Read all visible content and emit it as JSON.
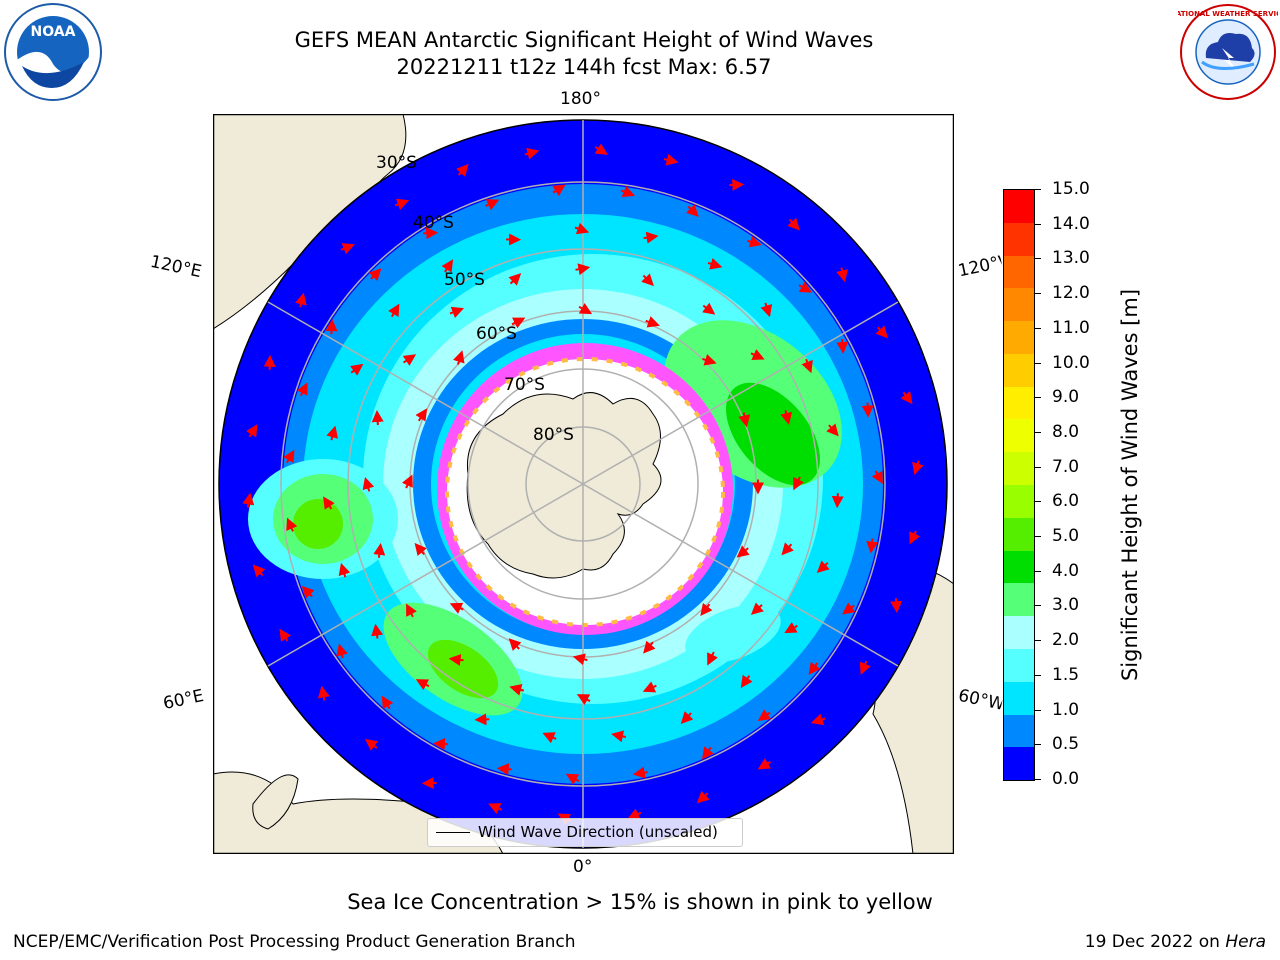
{
  "title": {
    "line1": "GEFS MEAN Antarctic Significant Height of Wind Waves",
    "line2": "20221211 t12z 144h fcst   Max: 6.57"
  },
  "map": {
    "projection": "south-polar-stereographic",
    "longitude_labels": {
      "top": "180°",
      "bottom": "0°",
      "left_upper": "120°E",
      "left_lower": "60°E",
      "right_upper": "120°W",
      "right_lower": "60°W"
    },
    "latitude_labels": [
      "30°S",
      "40°S",
      "50°S",
      "60°S",
      "70°S",
      "80°S"
    ],
    "land_color": "#efebd8",
    "legend": {
      "line_label": "Wind Wave Direction (unscaled)"
    }
  },
  "colorbar": {
    "label": "Significant Height of Wind Waves [m]",
    "ticks": [
      "15.0",
      "14.0",
      "13.0",
      "12.0",
      "11.0",
      "10.0",
      "9.0",
      "8.0",
      "7.0",
      "6.0",
      "5.0",
      "4.0",
      "3.0",
      "2.0",
      "1.5",
      "1.0",
      "0.5",
      "0.0"
    ],
    "colors": [
      "#ff0000",
      "#ff3300",
      "#ff6600",
      "#ff8800",
      "#ffaa00",
      "#ffcc00",
      "#ffee00",
      "#eeff00",
      "#ccff00",
      "#99ff00",
      "#55ee00",
      "#00dd00",
      "#55ff77",
      "#aaffff",
      "#55ffff",
      "#00e5ff",
      "#0088ff",
      "#0000ff"
    ]
  },
  "note": "Sea Ice Concentration > 15% is shown in pink to yellow",
  "footer": {
    "left": "NCEP/EMC/Verification Post Processing Product Generation Branch",
    "right_prefix": "19 Dec 2022 on ",
    "right_host": "Hera"
  },
  "logos": {
    "left": {
      "text": "NOAA"
    },
    "right": {
      "text": "NATIONAL WEATHER SERVICE"
    }
  }
}
